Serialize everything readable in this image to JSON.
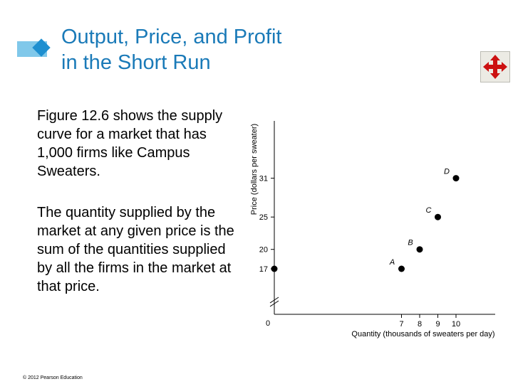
{
  "slide": {
    "title_line1": "Output, Price, and Profit",
    "title_line2": "in the Short Run",
    "paragraph1": "Figure 12.6 shows the supply curve for a market that has 1,000 firms like Campus Sweaters.",
    "paragraph2": "The quantity supplied by the market at any given price is the sum of the quantities supplied by all the firms in the market at that price.",
    "footer": "© 2012 Pearson Education",
    "accent_color": "#1a7ab8",
    "nav_icon": "four-way-move-arrows-icon",
    "nav_icon_color": "#cc1111"
  },
  "chart_data": {
    "type": "scatter",
    "title": "",
    "xlabel": "Quantity (thousands of sweaters per day)",
    "ylabel": "Price (dollars per sweater)",
    "origin_label": "0",
    "axis_break": true,
    "grid": false,
    "x_ticks": [
      "7",
      "8",
      "9",
      "10"
    ],
    "y_ticks": [
      "17",
      "20",
      "25",
      "31"
    ],
    "xlim": [
      0,
      11
    ],
    "ylim": [
      15,
      33
    ],
    "points": [
      {
        "label": "A",
        "x": 7,
        "y": 17
      },
      {
        "label": "B",
        "x": 8,
        "y": 20
      },
      {
        "label": "C",
        "x": 9,
        "y": 25
      },
      {
        "label": "D",
        "x": 10,
        "y": 31
      },
      {
        "label": "",
        "x": 0,
        "y": 17
      }
    ]
  }
}
